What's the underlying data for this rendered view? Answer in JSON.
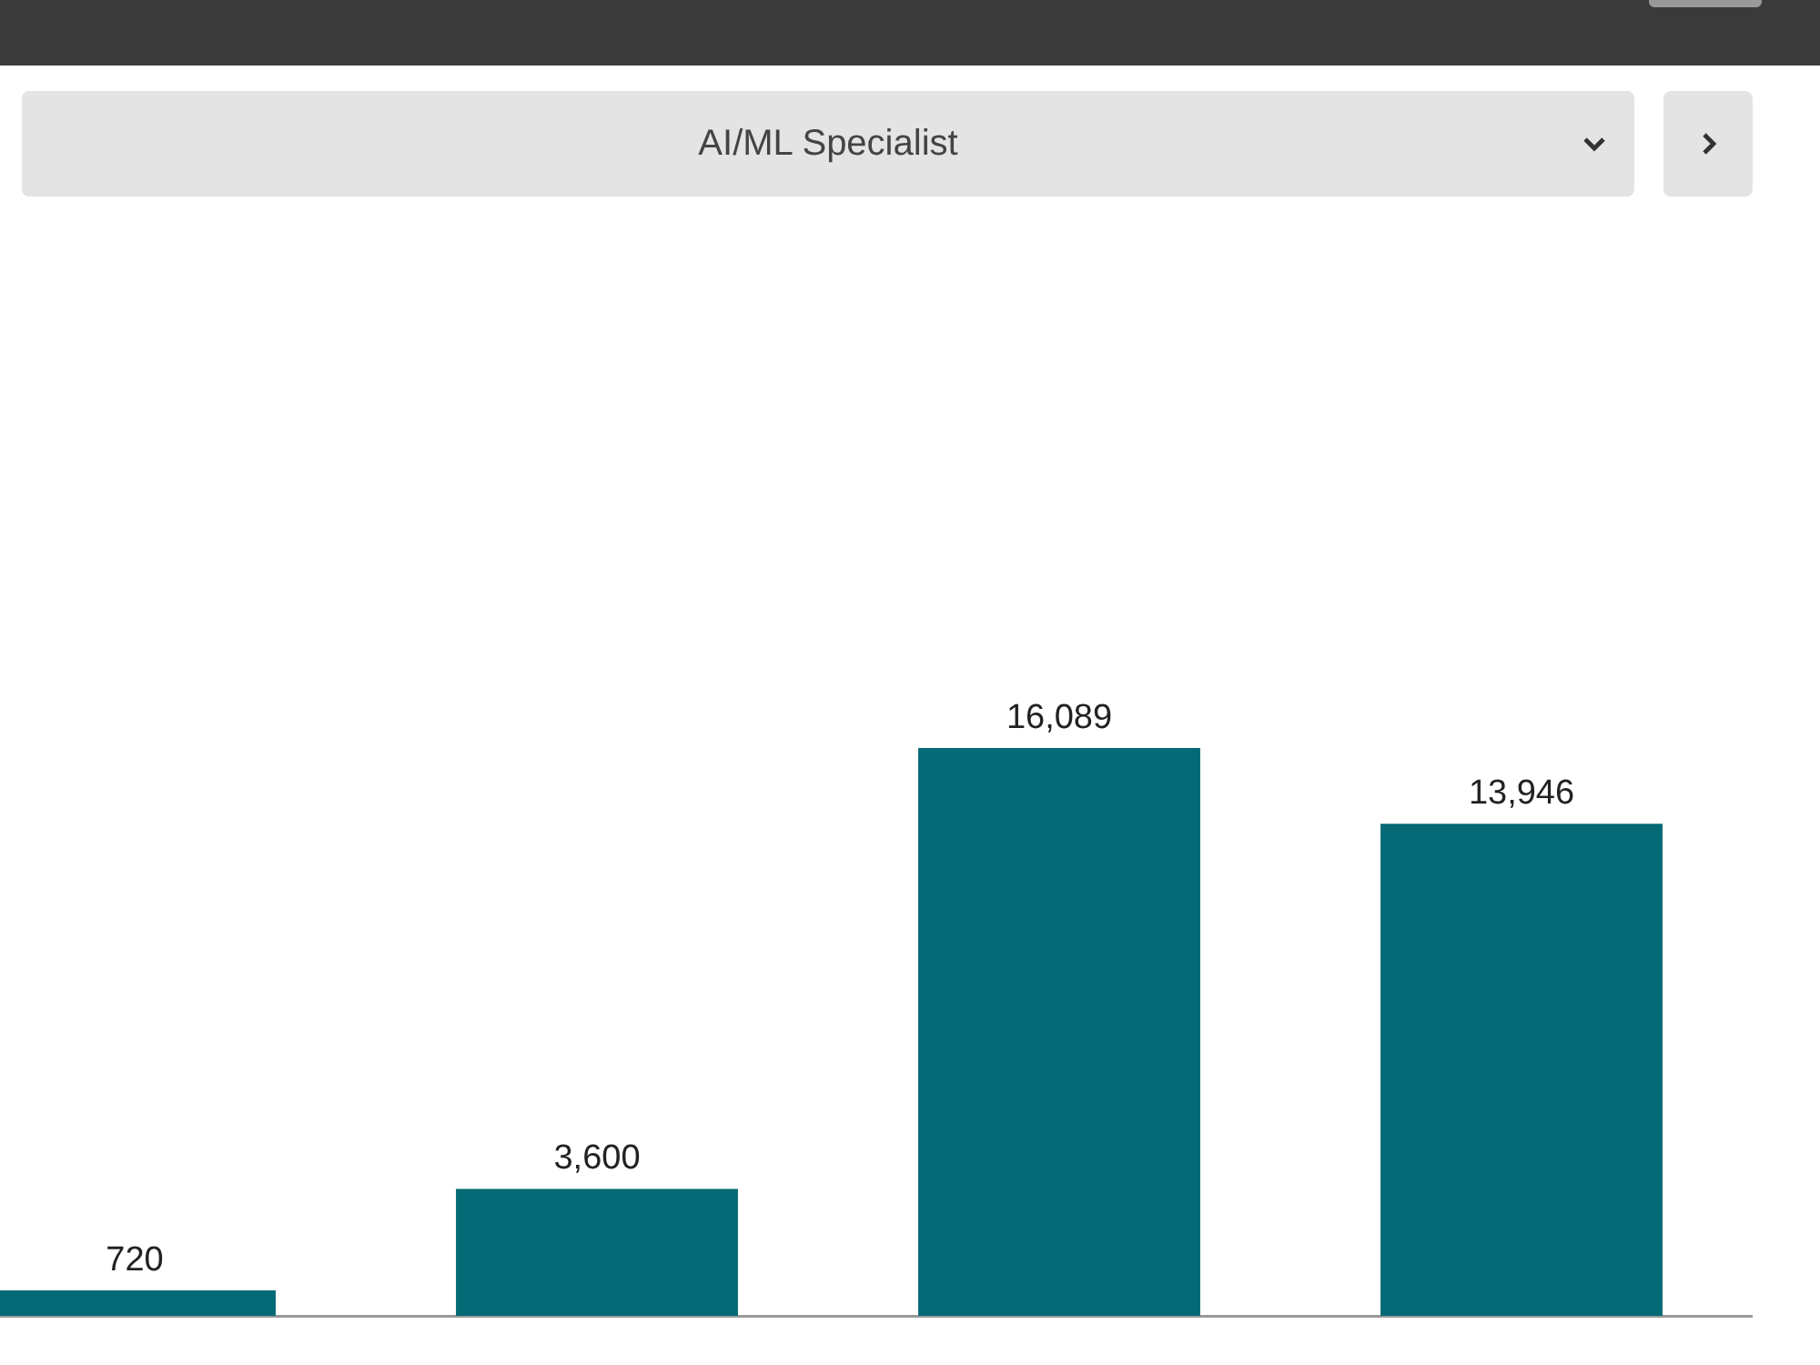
{
  "chart_data": {
    "type": "bar",
    "title": "AI/ML Specialist",
    "categories": [
      null,
      null,
      null,
      null
    ],
    "values": [
      720,
      3600,
      16089,
      13946
    ],
    "value_labels": [
      "720",
      "3,600",
      "16,089",
      "13,946"
    ],
    "color": "#056a75",
    "grid": false,
    "legend": false
  }
}
